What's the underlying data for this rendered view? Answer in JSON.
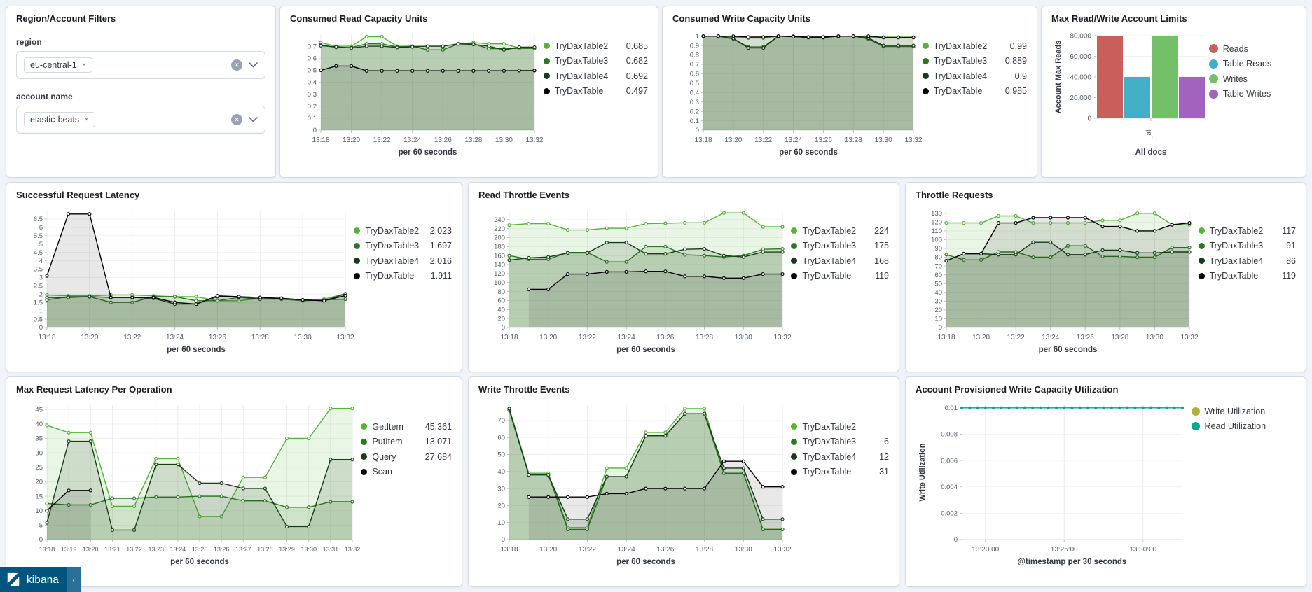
{
  "filters_panel": {
    "title": "Region/Account Filters",
    "fields": [
      {
        "label": "region",
        "pill": "eu-central-1",
        "remove_icon": "×"
      },
      {
        "label": "account name",
        "pill": "elastic-beats",
        "remove_icon": "×"
      }
    ],
    "clear_icon": "✕"
  },
  "branding": {
    "logo_text": "kibana",
    "collapse_icon": "‹"
  },
  "colors": {
    "green_bright": "#54b339",
    "green_mid": "#2c7722",
    "green_dark": "#173d18",
    "black": "#000000",
    "bar_red": "#c75f5b",
    "bar_teal": "#41b0c4",
    "bar_green": "#73c069",
    "bar_purple": "#a263bf",
    "util_write": "#b4af3c",
    "util_read": "#00a991"
  },
  "chart_data": [
    {
      "id": "consumed-read",
      "type": "line",
      "title": "Consumed Read Capacity Units",
      "xlabel": "per 60 seconds",
      "y_ticks": [
        0.7,
        0.6,
        0.5,
        0.4,
        0.3,
        0.2,
        0.1,
        0
      ],
      "y_domain_max": 0.8,
      "x_count": 15,
      "x_tick_indices": [
        0,
        2,
        4,
        6,
        8,
        10,
        12,
        14
      ],
      "x_tick_labels": [
        "13:18",
        "13:20",
        "13:22",
        "13:24",
        "13:26",
        "13:28",
        "13:30",
        "13:32"
      ],
      "legend_values": true,
      "series": [
        {
          "name": "TryDaxTable2",
          "color": "#54b339",
          "legend_value": "0.685",
          "values": [
            0.73,
            0.7,
            0.7,
            0.78,
            0.78,
            0.7,
            0.7,
            0.7,
            0.7,
            0.72,
            0.73,
            0.72,
            0.72,
            0.685,
            0.685
          ]
        },
        {
          "name": "TryDaxTable3",
          "color": "#2c7722",
          "legend_value": "0.682",
          "values": [
            0.71,
            0.69,
            0.69,
            0.72,
            0.72,
            0.695,
            0.7,
            0.67,
            0.67,
            0.72,
            0.72,
            0.68,
            0.68,
            0.682,
            0.682
          ]
        },
        {
          "name": "TryDaxTable4",
          "color": "#173d18",
          "legend_value": "0.692",
          "values": [
            0.705,
            0.695,
            0.685,
            0.7,
            0.7,
            0.69,
            0.695,
            0.7,
            0.7,
            0.72,
            0.715,
            0.7,
            0.67,
            0.692,
            0.692
          ]
        },
        {
          "name": "TryDaxTable",
          "color": "#000000",
          "legend_value": "0.497",
          "values": [
            0.5,
            0.535,
            0.535,
            0.495,
            0.495,
            0.495,
            0.495,
            0.495,
            0.495,
            0.495,
            0.495,
            0.495,
            0.495,
            0.497,
            0.497
          ]
        }
      ]
    },
    {
      "id": "consumed-write",
      "type": "line",
      "title": "Consumed Write Capacity Units",
      "xlabel": "per 60 seconds",
      "y_ticks": [
        1,
        0.9,
        0.8,
        0.7,
        0.6,
        0.5,
        0.4,
        0.3,
        0.2,
        0.1,
        0
      ],
      "y_domain_max": 1.02,
      "x_count": 15,
      "x_tick_indices": [
        0,
        2,
        4,
        6,
        8,
        10,
        12,
        14
      ],
      "x_tick_labels": [
        "13:18",
        "13:20",
        "13:22",
        "13:24",
        "13:26",
        "13:28",
        "13:30",
        "13:32"
      ],
      "legend_values": true,
      "series": [
        {
          "name": "TryDaxTable2",
          "color": "#54b339",
          "legend_value": "0.99",
          "values": [
            1,
            1,
            0.99,
            0.98,
            0.98,
            1,
            1,
            0.99,
            0.99,
            1,
            1,
            0.99,
            0.99,
            0.99,
            0.99
          ]
        },
        {
          "name": "TryDaxTable3",
          "color": "#2c7722",
          "legend_value": "0.889",
          "values": [
            1,
            1,
            0.97,
            0.885,
            0.885,
            1,
            1,
            0.985,
            0.985,
            1,
            1,
            0.97,
            0.889,
            0.889,
            0.889
          ]
        },
        {
          "name": "TryDaxTable4",
          "color": "#173d18",
          "legend_value": "0.9",
          "values": [
            1,
            1,
            0.975,
            0.875,
            0.875,
            1,
            0.995,
            0.985,
            0.985,
            1,
            1,
            0.98,
            0.9,
            0.9,
            0.9
          ]
        },
        {
          "name": "TryDaxTable",
          "color": "#000000",
          "legend_value": "0.985",
          "values": [
            1,
            1,
            1,
            0.99,
            0.99,
            1,
            0.995,
            0.99,
            0.99,
            1,
            1,
            1,
            0.985,
            0.985,
            0.985
          ]
        }
      ]
    },
    {
      "id": "max-limits",
      "type": "bar",
      "title": "Max Read/Write Account Limits",
      "ylabel": "Account Max Reads",
      "xlabel": "All docs",
      "x_tick_label": "_all",
      "y_ticks": [
        80000,
        60000,
        40000,
        20000,
        0
      ],
      "y_tick_labels": [
        "80,000",
        "60,000",
        "40,000",
        "20,000",
        "0"
      ],
      "y_domain_max": 80000,
      "legend_values": false,
      "series": [
        {
          "name": "Reads",
          "color": "#c75f5b",
          "value": 80000
        },
        {
          "name": "Table Reads",
          "color": "#41b0c4",
          "value": 40000
        },
        {
          "name": "Writes",
          "color": "#73c069",
          "value": 80000
        },
        {
          "name": "Table Writes",
          "color": "#a263bf",
          "value": 40000
        }
      ]
    },
    {
      "id": "success-latency",
      "type": "line",
      "title": "Successful Request Latency",
      "xlabel": "per 60 seconds",
      "y_ticks": [
        6.5,
        6,
        5.5,
        5,
        4.5,
        4,
        3.5,
        3,
        2.5,
        2,
        1.5,
        1,
        0.5,
        0
      ],
      "y_domain_max": 7.0,
      "x_count": 15,
      "x_tick_indices": [
        0,
        2,
        4,
        6,
        8,
        10,
        12,
        14
      ],
      "x_tick_labels": [
        "13:18",
        "13:20",
        "13:22",
        "13:24",
        "13:26",
        "13:28",
        "13:30",
        "13:32"
      ],
      "legend_values": true,
      "series": [
        {
          "name": "TryDaxTable2",
          "color": "#54b339",
          "legend_value": "2.023",
          "values": [
            1.95,
            1.9,
            1.9,
            1.95,
            1.95,
            1.9,
            1.85,
            1.85,
            1.6,
            1.6,
            1.75,
            1.7,
            1.65,
            1.7,
            2.023
          ]
        },
        {
          "name": "TryDaxTable3",
          "color": "#2c7722",
          "legend_value": "1.697",
          "values": [
            1.65,
            1.85,
            1.85,
            1.5,
            1.5,
            1.85,
            1.85,
            1.6,
            1.6,
            1.8,
            1.7,
            1.7,
            1.6,
            1.65,
            1.697
          ]
        },
        {
          "name": "TryDaxTable4",
          "color": "#173d18",
          "legend_value": "2.016",
          "values": [
            1.8,
            1.8,
            1.85,
            1.8,
            1.8,
            1.75,
            1.4,
            1.4,
            1.85,
            1.85,
            1.7,
            1.75,
            1.65,
            1.6,
            2.016
          ]
        },
        {
          "name": "TryDaxTable",
          "color": "#000000",
          "legend_value": "1.911",
          "values": [
            3.1,
            6.8,
            6.8,
            1.8,
            1.8,
            1.8,
            1.5,
            1.4,
            1.9,
            1.85,
            1.8,
            1.75,
            1.65,
            1.6,
            1.911
          ]
        }
      ]
    },
    {
      "id": "read-throttle",
      "type": "line",
      "title": "Read Throttle Events",
      "xlabel": "per 60 seconds",
      "y_ticks": [
        240,
        220,
        200,
        180,
        160,
        140,
        120,
        100,
        80,
        60,
        40,
        20,
        0
      ],
      "y_domain_max": 260,
      "x_count": 15,
      "x_tick_indices": [
        0,
        2,
        4,
        6,
        8,
        10,
        12,
        14
      ],
      "x_tick_labels": [
        "13:18",
        "13:20",
        "13:22",
        "13:24",
        "13:26",
        "13:28",
        "13:30",
        "13:32"
      ],
      "legend_values": true,
      "series": [
        {
          "name": "TryDaxTable2",
          "color": "#54b339",
          "legend_value": "224",
          "values": [
            228,
            231,
            231,
            217,
            217,
            221,
            221,
            231,
            232,
            233,
            233,
            255,
            255,
            224,
            224
          ]
        },
        {
          "name": "TryDaxTable3",
          "color": "#2c7722",
          "legend_value": "175",
          "values": [
            160,
            152,
            152,
            167,
            167,
            146,
            146,
            180,
            180,
            162,
            160,
            157,
            160,
            174,
            175
          ]
        },
        {
          "name": "TryDaxTable4",
          "color": "#173d18",
          "legend_value": "168",
          "values": [
            150,
            155,
            157,
            166,
            166,
            189,
            189,
            164,
            164,
            174,
            175,
            160,
            157,
            168,
            168
          ]
        },
        {
          "name": "TryDaxTable",
          "color": "#000000",
          "legend_value": "119",
          "values": [
            null,
            85,
            85,
            119,
            119,
            124,
            124,
            125,
            125,
            114,
            114,
            110,
            110,
            119,
            119
          ]
        }
      ]
    },
    {
      "id": "throttle-requests",
      "type": "line",
      "title": "Throttle Requests",
      "xlabel": "per 60 seconds",
      "y_ticks": [
        130,
        120,
        110,
        100,
        90,
        80,
        70,
        60,
        50,
        40,
        30,
        20,
        10,
        0
      ],
      "y_domain_max": 133,
      "x_count": 15,
      "x_tick_indices": [
        0,
        2,
        4,
        6,
        8,
        10,
        12,
        14
      ],
      "x_tick_labels": [
        "13:18",
        "13:20",
        "13:22",
        "13:24",
        "13:26",
        "13:28",
        "13:30",
        "13:32"
      ],
      "legend_values": true,
      "series": [
        {
          "name": "TryDaxTable2",
          "color": "#54b339",
          "legend_value": "117",
          "values": [
            119,
            119,
            119,
            127,
            127,
            119,
            119,
            119,
            119,
            122,
            122,
            130,
            130,
            117,
            117
          ]
        },
        {
          "name": "TryDaxTable3",
          "color": "#2c7722",
          "legend_value": "91",
          "values": [
            83,
            77,
            77,
            86,
            86,
            80,
            80,
            93,
            93,
            81,
            81,
            80,
            80,
            91,
            91
          ]
        },
        {
          "name": "TryDaxTable4",
          "color": "#173d18",
          "legend_value": "86",
          "values": [
            76,
            84,
            84,
            83,
            83,
            97,
            97,
            83,
            83,
            88,
            88,
            85,
            85,
            86,
            86
          ]
        },
        {
          "name": "TryDaxTable",
          "color": "#000000",
          "legend_value": "119",
          "values": [
            76,
            84,
            84,
            119,
            119,
            125,
            125,
            125,
            125,
            115,
            115,
            110,
            110,
            117,
            119
          ]
        }
      ]
    },
    {
      "id": "max-latency-op",
      "type": "line",
      "title": "Max Request Latency Per Operation",
      "xlabel": "per 60 seconds",
      "y_ticks": [
        45,
        40,
        35,
        30,
        25,
        20,
        15,
        10,
        5,
        0
      ],
      "y_domain_max": 46.5,
      "x_count": 15,
      "x_tick_indices": [
        0,
        1,
        2,
        3,
        4,
        5,
        6,
        7,
        8,
        9,
        10,
        11,
        12,
        13,
        14
      ],
      "x_tick_labels": [
        "13:18",
        "13:19",
        "13:20",
        "13:21",
        "13:22",
        "13:23",
        "13:24",
        "13:25",
        "13:26",
        "13:27",
        "13:28",
        "13:29",
        "13:30",
        "13:31",
        "13:32"
      ],
      "x_tick_font": 9,
      "legend_values": true,
      "series": [
        {
          "name": "GetItem",
          "color": "#54b339",
          "legend_value": "45.361",
          "values": [
            39.5,
            37,
            37,
            11.5,
            11.5,
            28,
            28,
            8,
            8,
            21.5,
            21.5,
            35,
            35,
            45.36,
            45.36
          ]
        },
        {
          "name": "PutItem",
          "color": "#2c7722",
          "legend_value": "13.071",
          "values": [
            12.5,
            12,
            12,
            14.3,
            14.3,
            14.7,
            14.7,
            15,
            15,
            13.4,
            13.4,
            11.2,
            11.2,
            13.07,
            13.07
          ]
        },
        {
          "name": "Query",
          "color": "#173d18",
          "legend_value": "27.684",
          "values": [
            5.8,
            34,
            34,
            3.3,
            3.3,
            26,
            26,
            19.5,
            19.5,
            17.7,
            17.7,
            4.5,
            4.5,
            27.68,
            27.68
          ]
        },
        {
          "name": "Scan",
          "color": "#000000",
          "legend_value": "",
          "values": [
            10,
            17,
            17,
            null,
            null,
            null,
            null,
            null,
            null,
            null,
            null,
            null,
            null,
            null,
            null
          ]
        }
      ]
    },
    {
      "id": "write-throttle",
      "type": "line",
      "title": "Write Throttle Events",
      "xlabel": "per 60 seconds",
      "y_ticks": [
        70,
        60,
        50,
        40,
        30,
        20,
        10,
        0
      ],
      "y_domain_max": 79,
      "x_count": 15,
      "x_tick_indices": [
        0,
        2,
        4,
        6,
        8,
        10,
        12,
        14
      ],
      "x_tick_labels": [
        "13:18",
        "13:20",
        "13:22",
        "13:24",
        "13:26",
        "13:28",
        "13:30",
        "13:32"
      ],
      "legend_values": true,
      "series": [
        {
          "name": "TryDaxTable2",
          "color": "#54b339",
          "legend_value": "",
          "values": [
            77,
            39,
            39,
            7,
            7,
            42,
            42,
            63,
            63,
            77,
            77,
            39,
            39,
            6,
            6
          ]
        },
        {
          "name": "TryDaxTable3",
          "color": "#2c7722",
          "legend_value": "6",
          "values": [
            76,
            38,
            38,
            6,
            6,
            37,
            37,
            61,
            61,
            74,
            74,
            39,
            39,
            6,
            6
          ]
        },
        {
          "name": "TryDaxTable4",
          "color": "#173d18",
          "legend_value": "12",
          "values": [
            77,
            38,
            38,
            12,
            12,
            37,
            37,
            61,
            61,
            74,
            74,
            42,
            42,
            12,
            12
          ]
        },
        {
          "name": "TryDaxTable",
          "color": "#000000",
          "legend_value": "31",
          "values": [
            null,
            25,
            25,
            25,
            25,
            27,
            27,
            30,
            30,
            30,
            30,
            46,
            46,
            31,
            31
          ]
        }
      ]
    },
    {
      "id": "write-util",
      "type": "line",
      "title": "Account Provisioned Write Capacity Utilization",
      "xlabel": "@timestamp per 30 seconds",
      "ylabel": "Write Utilization",
      "y_ticks": [
        0.01,
        0.008,
        0.006,
        0.004,
        0.002,
        0
      ],
      "y_domain_max": 0.0102,
      "x_count": 29,
      "x_tick_indices": [
        3,
        13,
        23
      ],
      "x_tick_labels": [
        "13:20:00",
        "13:25:00",
        "13:30:00"
      ],
      "legend_values": false,
      "no_fill": true,
      "marker_r": 1.5,
      "series": [
        {
          "name": "Write Utilization",
          "color": "#b4af3c",
          "values": []
        },
        {
          "name": "Read Utilization",
          "color": "#00a991",
          "values": [
            0.01,
            0.01,
            0.01,
            0.01,
            0.01,
            0.01,
            0.01,
            0.01,
            0.01,
            0.01,
            0.01,
            0.01,
            0.01,
            0.01,
            0.01,
            0.01,
            0.01,
            0.01,
            0.01,
            0.01,
            0.01,
            0.01,
            0.01,
            0.01,
            0.01,
            0.01,
            0.01,
            0.01,
            0.01
          ]
        }
      ]
    }
  ]
}
